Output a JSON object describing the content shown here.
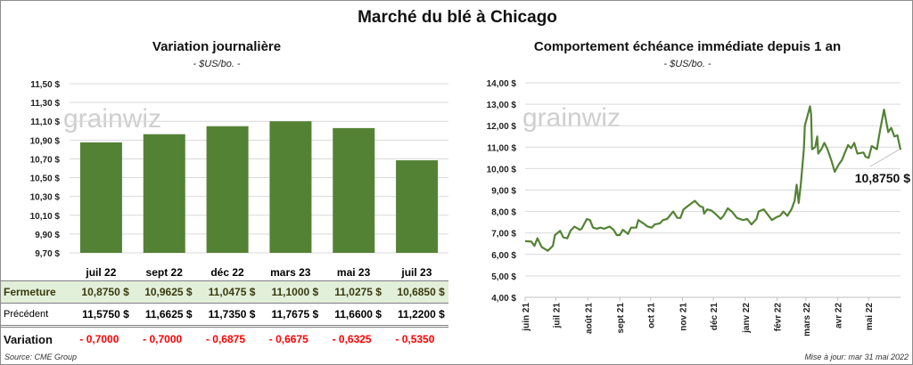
{
  "title": "Marché du blé à Chicago",
  "watermark": "grainwiz",
  "colors": {
    "bar": "#548235",
    "line": "#548235",
    "fermeture_bg": "#e2efd9",
    "negative": "#ff0000"
  },
  "chart_data": [
    {
      "type": "bar",
      "title": "Variation  journalière",
      "subtitle": "- $US/bo. -",
      "categories": [
        "juil 22",
        "sept 22",
        "déc 22",
        "mars 23",
        "mai 23",
        "juil 23"
      ],
      "values": [
        10.875,
        10.9625,
        11.0475,
        11.1,
        11.0275,
        10.685
      ],
      "ylim": [
        9.7,
        11.5
      ],
      "yticks": [
        "9,70 $",
        "9,90 $",
        "10,10 $",
        "10,30 $",
        "10,50 $",
        "10,70 $",
        "10,90 $",
        "11,10 $",
        "11,30 $",
        "11,50 $"
      ],
      "grid": true
    },
    {
      "type": "line",
      "title": "Comportement  échéance immédiate depuis 1 an",
      "subtitle": "- $US/bo. -",
      "x_unit": "days since juin 21",
      "xlim": [
        0,
        365
      ],
      "ylim": [
        4,
        14
      ],
      "yticks": [
        "4,00 $",
        "5,00 $",
        "6,00 $",
        "7,00 $",
        "8,00 $",
        "9,00 $",
        "10,00 $",
        "11,00 $",
        "12,00 $",
        "13,00 $",
        "14,00 $"
      ],
      "xticks": [
        {
          "day": 0,
          "label": "juin 21"
        },
        {
          "day": 30,
          "label": "juil 21"
        },
        {
          "day": 61,
          "label": "août 21"
        },
        {
          "day": 92,
          "label": "sept 21"
        },
        {
          "day": 122,
          "label": "oct 21"
        },
        {
          "day": 153,
          "label": "nov 21"
        },
        {
          "day": 183,
          "label": "déc 21"
        },
        {
          "day": 214,
          "label": "janv 22"
        },
        {
          "day": 245,
          "label": "févr 22"
        },
        {
          "day": 273,
          "label": "mars 22"
        },
        {
          "day": 304,
          "label": "avr 22"
        },
        {
          "day": 334,
          "label": "mai 22"
        }
      ],
      "last_label": "10,8750 $",
      "points": [
        [
          0,
          6.62
        ],
        [
          6,
          6.6
        ],
        [
          9,
          6.4
        ],
        [
          12,
          6.75
        ],
        [
          16,
          6.35
        ],
        [
          22,
          6.17
        ],
        [
          27,
          6.4
        ],
        [
          29,
          6.9
        ],
        [
          34,
          7.1
        ],
        [
          37,
          6.8
        ],
        [
          41,
          6.75
        ],
        [
          44,
          7.1
        ],
        [
          48,
          7.3
        ],
        [
          53,
          7.15
        ],
        [
          55,
          7.2
        ],
        [
          60,
          7.65
        ],
        [
          63,
          7.6
        ],
        [
          66,
          7.25
        ],
        [
          70,
          7.2
        ],
        [
          73,
          7.25
        ],
        [
          77,
          7.2
        ],
        [
          82,
          7.3
        ],
        [
          86,
          7.15
        ],
        [
          89,
          6.9
        ],
        [
          92,
          6.9
        ],
        [
          95,
          7.15
        ],
        [
          99,
          7.0
        ],
        [
          100,
          6.95
        ],
        [
          103,
          7.25
        ],
        [
          108,
          7.25
        ],
        [
          110,
          7.6
        ],
        [
          115,
          7.45
        ],
        [
          119,
          7.3
        ],
        [
          123,
          7.25
        ],
        [
          126,
          7.4
        ],
        [
          131,
          7.45
        ],
        [
          134,
          7.6
        ],
        [
          138,
          7.65
        ],
        [
          144,
          8.0
        ],
        [
          148,
          7.7
        ],
        [
          151,
          7.7
        ],
        [
          154,
          8.1
        ],
        [
          158,
          8.25
        ],
        [
          165,
          8.5
        ],
        [
          170,
          8.25
        ],
        [
          173,
          8.2
        ],
        [
          174,
          7.9
        ],
        [
          177,
          8.1
        ],
        [
          181,
          8.05
        ],
        [
          186,
          7.85
        ],
        [
          190,
          7.65
        ],
        [
          193,
          7.8
        ],
        [
          197,
          8.15
        ],
        [
          201,
          8.0
        ],
        [
          206,
          7.7
        ],
        [
          212,
          7.6
        ],
        [
          216,
          7.65
        ],
        [
          220,
          7.4
        ],
        [
          225,
          7.65
        ],
        [
          227,
          8.0
        ],
        [
          232,
          8.1
        ],
        [
          236,
          7.85
        ],
        [
          240,
          7.6
        ],
        [
          245,
          7.75
        ],
        [
          248,
          7.8
        ],
        [
          251,
          8.0
        ],
        [
          255,
          7.8
        ],
        [
          259,
          8.1
        ],
        [
          262,
          8.5
        ],
        [
          264,
          9.25
        ],
        [
          266,
          8.4
        ],
        [
          268,
          9.25
        ],
        [
          271,
          10.9
        ],
        [
          272,
          12.0
        ],
        [
          277,
          12.9
        ],
        [
          278,
          12.55
        ],
        [
          279,
          10.9
        ],
        [
          282,
          11.0
        ],
        [
          284,
          11.5
        ],
        [
          285,
          10.7
        ],
        [
          288,
          10.9
        ],
        [
          291,
          11.2
        ],
        [
          294,
          10.9
        ],
        [
          298,
          10.35
        ],
        [
          301,
          9.85
        ],
        [
          305,
          10.2
        ],
        [
          308,
          10.4
        ],
        [
          311,
          10.75
        ],
        [
          314,
          11.1
        ],
        [
          317,
          10.95
        ],
        [
          320,
          11.2
        ],
        [
          323,
          10.7
        ],
        [
          329,
          10.75
        ],
        [
          331,
          10.55
        ],
        [
          334,
          10.5
        ],
        [
          337,
          11.05
        ],
        [
          342,
          10.9
        ],
        [
          345,
          11.75
        ],
        [
          349,
          12.75
        ],
        [
          353,
          11.7
        ],
        [
          356,
          11.9
        ],
        [
          359,
          11.5
        ],
        [
          362,
          11.55
        ],
        [
          365,
          10.875
        ]
      ]
    }
  ],
  "table": {
    "headers": [
      "juil 22",
      "sept 22",
      "déc 22",
      "mars 23",
      "mai 23",
      "juil 23"
    ],
    "rows": [
      {
        "label": "Fermeture",
        "values": [
          "10,8750  $",
          "10,9625  $",
          "11,0475  $",
          "11,1000  $",
          "11,0275  $",
          "10,6850  $"
        ]
      },
      {
        "label": "Précédent",
        "values": [
          "11,5750  $",
          "11,6625  $",
          "11,7350  $",
          "11,7675  $",
          "11,6600  $",
          "11,2200  $"
        ]
      },
      {
        "label": "Variation",
        "values": [
          "- 0,7000",
          "- 0,7000",
          "- 0,6875",
          "- 0,6675",
          "- 0,6325",
          "- 0,5350"
        ]
      }
    ]
  },
  "source": "Source: CME Group",
  "updated": "Mise à jour: mar 31 mai 2022"
}
